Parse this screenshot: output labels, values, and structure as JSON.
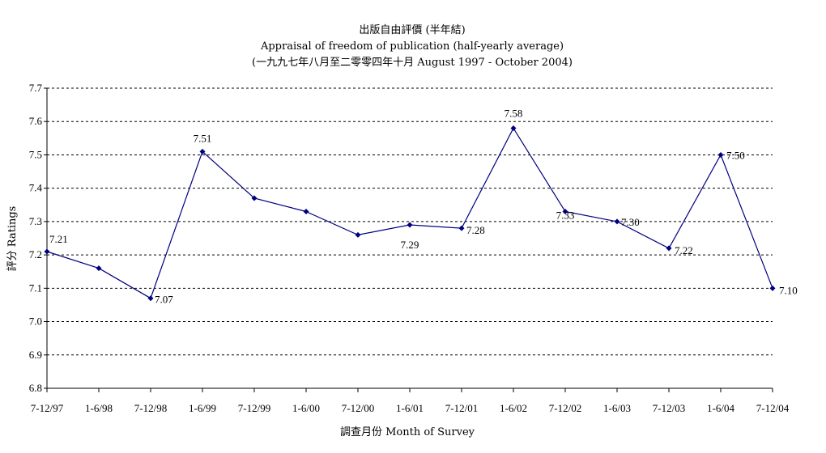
{
  "chart_data": {
    "type": "line",
    "title": "出版自由評價 (半年結)",
    "subtitle": "Appraisal of freedom of publication (half-yearly average)",
    "subtitle2": "(一九九七年八月至二零零四年十月 August 1997 - October 2004)",
    "xlabel": "調查月份 Month of Survey",
    "ylabel": "評分 Ratings",
    "ylim": [
      6.8,
      7.7
    ],
    "ytick_step": 0.1,
    "grid": true,
    "line_color": "#000080",
    "categories": [
      "7-12/97",
      "1-6/98",
      "7-12/98",
      "1-6/99",
      "7-12/99",
      "1-6/00",
      "7-12/00",
      "1-6/01",
      "7-12/01",
      "1-6/02",
      "7-12/02",
      "1-6/03",
      "7-12/03",
      "1-6/04",
      "7-12/04"
    ],
    "values": [
      7.21,
      7.16,
      7.07,
      7.51,
      7.37,
      7.33,
      7.26,
      7.29,
      7.28,
      7.58,
      7.33,
      7.3,
      7.22,
      7.5,
      7.1
    ],
    "data_labels": [
      "7.21",
      "",
      "7.07",
      "7.51",
      "",
      "",
      "",
      "7.29",
      "7.28",
      "7.58",
      "7.33",
      "7.30",
      "7.22",
      "7.50",
      "7.10"
    ]
  }
}
